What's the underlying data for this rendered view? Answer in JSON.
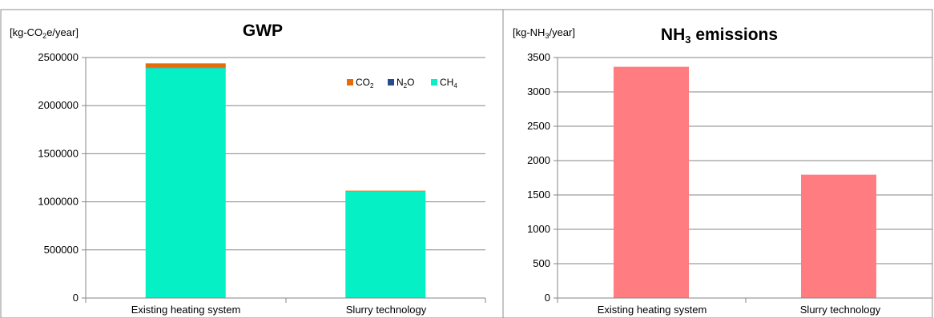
{
  "chart_data": [
    {
      "type": "bar",
      "stacked": true,
      "title": "GWP",
      "unit_label": "[kg-CO2e/year]",
      "categories": [
        "Existing heating system",
        "Slurry technology"
      ],
      "series": [
        {
          "name": "CO2",
          "label_base": "CO",
          "label_sub": "2",
          "color": "#e46c0a",
          "values": [
            45000,
            4000
          ]
        },
        {
          "name": "N2O",
          "label_base": "N",
          "label_sub": "2",
          "label_tail": "O",
          "color": "#254b8d",
          "values": [
            4000,
            2000
          ]
        },
        {
          "name": "CH4",
          "label_base": "CH",
          "label_sub": "4",
          "color": "#05f0c4",
          "values": [
            2390000,
            1110000
          ]
        }
      ],
      "ylim": [
        0,
        2500000
      ],
      "yticks": [
        0,
        500000,
        1000000,
        1500000,
        2000000,
        2500000
      ],
      "grid": true,
      "legend_position": "top-right"
    },
    {
      "type": "bar",
      "title": "NH3 emissions",
      "unit_label": "[kg-NH3/year]",
      "categories": [
        "Existing heating system",
        "Slurry technology"
      ],
      "series": [
        {
          "name": "NH3",
          "color": "#ff7c80",
          "values": [
            3365,
            1795
          ]
        }
      ],
      "ylim": [
        0,
        3500
      ],
      "yticks": [
        0,
        500,
        1000,
        1500,
        2000,
        2500,
        3000,
        3500
      ],
      "grid": true
    }
  ]
}
